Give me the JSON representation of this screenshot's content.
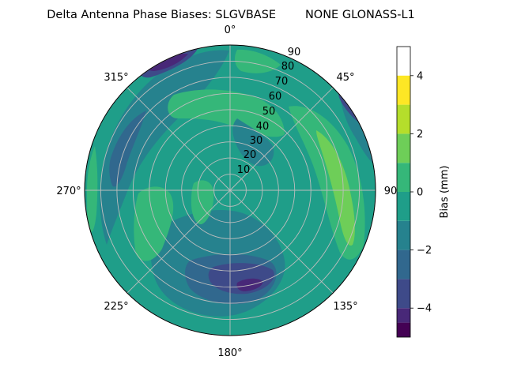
{
  "chart_data": {
    "type": "polar-contour",
    "title": "Delta Antenna Phase Biases: SLGVBASE        NONE GLONASS-L1",
    "azimuth_tick_labels": [
      "0°",
      "45°",
      "90",
      "135°",
      "180°",
      "225°",
      "270°",
      "315°"
    ],
    "radial_tick_labels": [
      "10",
      "20",
      "30",
      "40",
      "50",
      "60",
      "70",
      "80",
      "90"
    ],
    "radial_range": [
      0,
      90
    ],
    "grid": true,
    "colorbar": {
      "label": "Bias (mm)",
      "range": [
        -5,
        5
      ],
      "tick_labels": [
        "−4",
        "−2",
        "0",
        "2",
        "4"
      ],
      "levels": [
        -5,
        -4.5,
        -4,
        -3,
        -2,
        -1,
        0,
        1,
        2,
        3,
        4,
        5
      ],
      "colors": [
        "#440154",
        "#482878",
        "#3e4a89",
        "#31688e",
        "#26828e",
        "#1f9e89",
        "#35b779",
        "#6ece58",
        "#b5de2b",
        "#fde725"
      ]
    }
  }
}
